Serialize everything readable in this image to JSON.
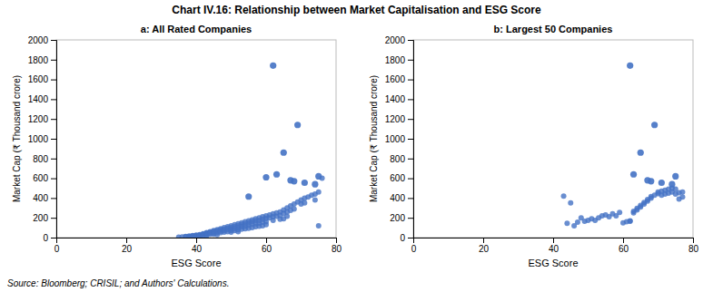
{
  "title": "Chart IV.16: Relationship between Market Capitalisation and ESG Score",
  "source": "Source: Bloomberg; CRISIL; and Authors' Calculations.",
  "chart_data": [
    {
      "type": "scatter",
      "title": "a: All Rated Companies",
      "xlabel": "ESG Score",
      "ylabel": "Market Cap (₹ Thousand crore)",
      "xlim": [
        0,
        80
      ],
      "ylim": [
        0,
        2000
      ],
      "xticks": [
        0,
        20,
        40,
        60,
        80
      ],
      "yticks": [
        0,
        200,
        400,
        600,
        800,
        1000,
        1200,
        1400,
        1600,
        1800,
        2000
      ],
      "series": [
        {
          "color": "#4472C4",
          "x": [
            35,
            36,
            37,
            37,
            38,
            38,
            38,
            39,
            39,
            39,
            40,
            40,
            40,
            40,
            41,
            41,
            41,
            41,
            42,
            42,
            42,
            42,
            43,
            43,
            43,
            43,
            43,
            44,
            44,
            44,
            44,
            45,
            45,
            45,
            45,
            45,
            46,
            46,
            46,
            46,
            46,
            47,
            47,
            47,
            47,
            48,
            48,
            48,
            48,
            49,
            49,
            49,
            49,
            50,
            50,
            50,
            50,
            50,
            51,
            51,
            51,
            51,
            52,
            52,
            52,
            52,
            52,
            53,
            53,
            53,
            53,
            54,
            54,
            54,
            54,
            55,
            55,
            55,
            55,
            56,
            56,
            56,
            56,
            57,
            57,
            57,
            57,
            58,
            58,
            58,
            58,
            59,
            59,
            59,
            59,
            60,
            60,
            60,
            60,
            61,
            61,
            62,
            62,
            62,
            63,
            63,
            64,
            64,
            64,
            65,
            65,
            65,
            66,
            66,
            66,
            67,
            67,
            68,
            68,
            69,
            70,
            70,
            71,
            71,
            72,
            73,
            74,
            74,
            75,
            75,
            76
          ],
          "values": [
            5,
            8,
            10,
            12,
            15,
            10,
            8,
            20,
            15,
            12,
            25,
            20,
            18,
            10,
            30,
            25,
            20,
            15,
            40,
            35,
            30,
            20,
            50,
            45,
            40,
            30,
            20,
            60,
            55,
            45,
            35,
            70,
            65,
            55,
            45,
            35,
            80,
            70,
            60,
            50,
            30,
            90,
            80,
            65,
            50,
            100,
            85,
            70,
            55,
            110,
            95,
            80,
            60,
            120,
            100,
            85,
            70,
            55,
            130,
            110,
            90,
            70,
            140,
            120,
            100,
            80,
            60,
            150,
            130,
            110,
            85,
            160,
            140,
            115,
            90,
            170,
            150,
            125,
            95,
            180,
            160,
            135,
            100,
            190,
            170,
            140,
            110,
            200,
            175,
            145,
            115,
            210,
            185,
            155,
            120,
            220,
            195,
            160,
            130,
            230,
            200,
            240,
            210,
            175,
            250,
            215,
            260,
            225,
            185,
            280,
            245,
            190,
            300,
            260,
            215,
            320,
            275,
            340,
            290,
            360,
            380,
            340,
            400,
            350,
            410,
            430,
            440,
            380,
            460,
            120,
            600
          ]
        },
        {
          "color": "#4472C4",
          "x": [
            62,
            69,
            65,
            55,
            63,
            60,
            67,
            68,
            71,
            74,
            75
          ],
          "values": [
            1740,
            1140,
            860,
            415,
            640,
            610,
            580,
            570,
            555,
            540,
            620
          ]
        }
      ]
    },
    {
      "type": "scatter",
      "title": "b: Largest 50 Companies",
      "xlabel": "ESG Score",
      "ylabel": "Market Cap (₹ Thousand crore)",
      "xlim": [
        0,
        80
      ],
      "ylim": [
        0,
        2000
      ],
      "xticks": [
        0,
        20,
        40,
        60,
        80
      ],
      "yticks": [
        0,
        200,
        400,
        600,
        800,
        1000,
        1200,
        1400,
        1600,
        1800,
        2000
      ],
      "series": [
        {
          "color": "#4472C4",
          "x": [
            43,
            44,
            45,
            46,
            47,
            48,
            49,
            50,
            51,
            52,
            53,
            54,
            55,
            56,
            57,
            58,
            59,
            60,
            61,
            62,
            62,
            63,
            63,
            64,
            64,
            65,
            65,
            66,
            66,
            67,
            67,
            68,
            68,
            69,
            70,
            70,
            71,
            71,
            72,
            72,
            73,
            73,
            74,
            74,
            75,
            75,
            76,
            76,
            77,
            77
          ],
          "values": [
            420,
            145,
            350,
            120,
            155,
            200,
            165,
            175,
            190,
            175,
            200,
            220,
            230,
            210,
            240,
            220,
            255,
            150,
            160,
            165,
            170,
            250,
            265,
            280,
            295,
            310,
            325,
            340,
            355,
            370,
            385,
            400,
            415,
            430,
            445,
            460,
            430,
            470,
            440,
            480,
            450,
            490,
            460,
            500,
            440,
            490,
            455,
            390,
            460,
            410
          ]
        },
        {
          "color": "#4472C4",
          "x": [
            62,
            69,
            65,
            63,
            67,
            68,
            71,
            74,
            75
          ],
          "values": [
            1740,
            1140,
            860,
            640,
            580,
            570,
            555,
            540,
            620
          ]
        }
      ]
    }
  ]
}
